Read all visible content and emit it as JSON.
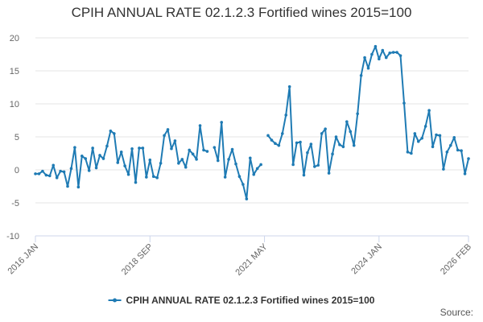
{
  "chart_data": {
    "type": "line",
    "title": "CPIH ANNUAL RATE 02.1.2.3 Fortified wines 2015=100",
    "xlabel": "",
    "ylabel": "",
    "ylim": [
      -10,
      20
    ],
    "yticks": [
      20,
      15,
      10,
      5,
      0,
      -5,
      -10
    ],
    "xtick_labels": [
      "2016 JAN",
      "2018 SEP",
      "2021 MAY",
      "2024 JAN",
      "2026 FEB"
    ],
    "xtick_indices": [
      0,
      32,
      64,
      96,
      121
    ],
    "x_start": "2016 JAN",
    "x_end": "2026 FEB",
    "grid": true,
    "legend_position": "bottom",
    "series": [
      {
        "name": "CPIH ANNUAL RATE 02.1.2.3 Fortified wines 2015=100",
        "color": "#1f7bb4",
        "values": [
          -0.6,
          -0.6,
          -0.2,
          -0.8,
          -0.9,
          0.7,
          -1.2,
          -0.2,
          -0.3,
          -2.5,
          0.2,
          3.4,
          -2.6,
          2.1,
          1.7,
          -0.1,
          3.3,
          0.3,
          2.2,
          1.7,
          3.6,
          5.9,
          5.5,
          1.1,
          2.7,
          0.6,
          -0.7,
          3.2,
          -1.9,
          3.3,
          3.3,
          -1.1,
          1.5,
          -1.0,
          -1.2,
          1.0,
          5.2,
          6.1,
          3.2,
          4.4,
          1.0,
          1.6,
          0.4,
          3.0,
          2.4,
          1.6,
          6.7,
          3.0,
          2.8,
          null,
          3.4,
          1.4,
          7.2,
          -1.1,
          1.6,
          3.1,
          0.9,
          -1.0,
          -2.2,
          -4.4,
          1.8,
          -0.7,
          0.2,
          0.8,
          null,
          5.2,
          4.5,
          4.0,
          3.7,
          5.5,
          8.3,
          12.6,
          0.8,
          4.1,
          4.2,
          -0.8,
          2.6,
          3.9,
          0.5,
          0.7,
          5.5,
          6.2,
          -0.5,
          2.4,
          5.0,
          3.8,
          3.5,
          7.3,
          5.8,
          3.7,
          8.5,
          14.3,
          17.0,
          15.4,
          17.5,
          18.7,
          16.8,
          18.1,
          17.0,
          17.7,
          17.8,
          17.8,
          17.3,
          10.1,
          2.7,
          2.5,
          5.5,
          4.3,
          4.8,
          6.6,
          9.0,
          3.5,
          5.3,
          5.2,
          0.1,
          2.7,
          3.7,
          4.9,
          3.0,
          2.9,
          -0.6,
          1.7
        ]
      }
    ]
  },
  "footer": {
    "source_label": "Source:"
  }
}
